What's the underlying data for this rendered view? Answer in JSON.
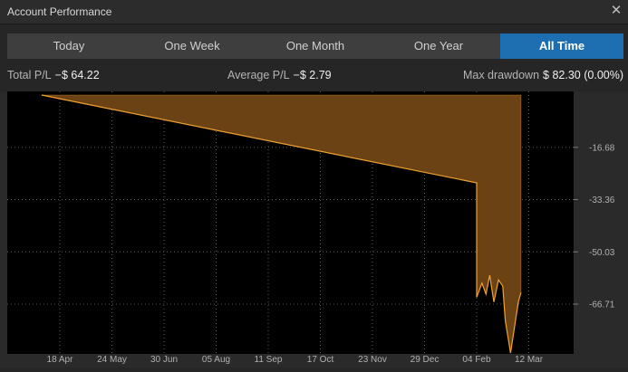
{
  "window": {
    "title": "Account Performance"
  },
  "tabs": [
    {
      "label": "Today",
      "active": false
    },
    {
      "label": "One Week",
      "active": false
    },
    {
      "label": "One Month",
      "active": false
    },
    {
      "label": "One Year",
      "active": false
    },
    {
      "label": "All Time",
      "active": true
    }
  ],
  "stats": {
    "total_label": "Total P/L",
    "total_value": "−$ 64.22",
    "avg_label": "Average P/L",
    "avg_value": "−$ 2.79",
    "dd_label": "Max drawdown",
    "dd_value": "$ 82.30 (0.00%)"
  },
  "colors": {
    "accent": "#1e6fb1",
    "line": "#f0a030",
    "fill": "#6b4214",
    "plot_bg": "#000000"
  },
  "chart_data": {
    "type": "area",
    "x_tick_labels": [
      "18 Apr",
      "24 May",
      "30 Jun",
      "05 Aug",
      "11 Sep",
      "17 Oct",
      "23 Nov",
      "29 Dec",
      "04 Feb",
      "12 Mar"
    ],
    "y_tick_labels": [
      "-16.68",
      "-33.36",
      "-50.03",
      "-66.71"
    ],
    "y_ticks": [
      -16.68,
      -33.36,
      -50.03,
      -66.71
    ],
    "ylim": [
      -82.3,
      0
    ],
    "grid": true,
    "x_index_range": [
      0,
      9.5
    ],
    "points": [
      [
        -0.35,
        0
      ],
      [
        8.0,
        -28.0
      ],
      [
        8.0,
        -64.5
      ],
      [
        8.1,
        -60.0
      ],
      [
        8.18,
        -63.5
      ],
      [
        8.25,
        -57.5
      ],
      [
        8.33,
        -66.0
      ],
      [
        8.42,
        -59.0
      ],
      [
        8.5,
        -61.0
      ],
      [
        8.55,
        -72.0
      ],
      [
        8.65,
        -82.3
      ],
      [
        8.8,
        -66.0
      ],
      [
        8.85,
        -63.0
      ]
    ],
    "area_top": [
      [
        8.85,
        0
      ]
    ]
  }
}
